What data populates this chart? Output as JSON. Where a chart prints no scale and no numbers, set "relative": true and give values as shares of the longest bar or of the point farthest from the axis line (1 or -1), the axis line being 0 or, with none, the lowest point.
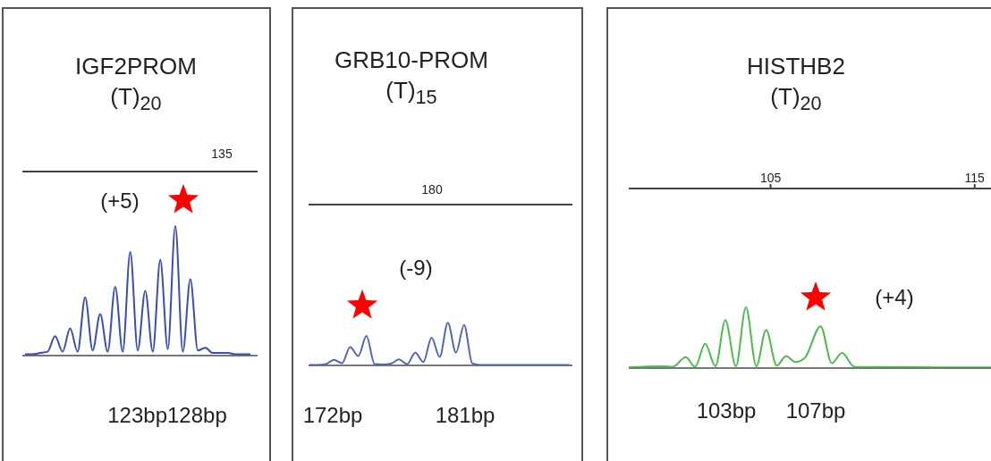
{
  "chart_data": [
    {
      "type": "line",
      "title": "IGF2PROM",
      "subtitle": "(T)$_{20}$",
      "relative": true,
      "categories": [
        null,
        null,
        null,
        null,
        null,
        null,
        null,
        null,
        null,
        null,
        null,
        null,
        null,
        null,
        null,
        null,
        null,
        null,
        null,
        null,
        null,
        null,
        null,
        null,
        null,
        null,
        null,
        null,
        null,
        null,
        null
      ],
      "series": [
        {
          "color": "#3a4db5",
          "values": [
            0.01,
            0.01,
            0.02,
            0.03,
            0.15,
            0.03,
            0.21,
            0.03,
            0.45,
            0.04,
            0.32,
            0.03,
            0.53,
            0.03,
            0.8,
            0.04,
            0.5,
            0.03,
            0.74,
            0.05,
            1.0,
            0.03,
            0.59,
            0.04,
            0.06,
            0.02,
            0.02,
            0.02,
            0.01,
            0.01,
            0.01
          ]
        }
      ],
      "annotations": [
        "135",
        "(+5)",
        "123bp128bp"
      ]
    },
    {
      "type": "line",
      "title": "GRB10-PROM",
      "subtitle": "(T)$_{15}$",
      "relative": true,
      "categories": [
        null,
        null,
        null,
        null,
        null,
        null,
        null,
        null,
        null,
        null,
        null,
        null,
        null,
        null,
        null,
        null,
        null,
        null,
        null,
        null,
        null,
        null,
        null,
        null,
        null,
        null,
        null,
        null,
        null,
        null,
        null,
        null,
        null
      ],
      "series": [
        {
          "color": "#5066b8",
          "values": [
            0.01,
            0.01,
            0.03,
            0.13,
            0.05,
            0.43,
            0.22,
            0.69,
            0.03,
            0.02,
            0.04,
            0.14,
            0.03,
            0.3,
            0.08,
            0.65,
            0.2,
            1.0,
            0.3,
            0.95,
            0.05,
            0.01,
            0.01,
            0.01,
            0.01,
            0.01,
            0.01,
            0.01,
            0.01,
            0.01,
            0.01,
            0.01,
            0.01
          ]
        }
      ],
      "annotations": [
        "180",
        "(-9)",
        "172bp",
        "181bp"
      ]
    },
    {
      "type": "line",
      "title": "HISTHB2",
      "subtitle": "(T)$_{20}$",
      "relative": true,
      "xlim": [
        98.05,
        115.8
      ],
      "xticks": [
        105,
        115
      ],
      "x": [
        98.05,
        99.67,
        100.2,
        100.84,
        101.3,
        101.79,
        102.3,
        102.78,
        103.3,
        103.79,
        104.3,
        104.78,
        105.3,
        105.76,
        106.2,
        106.68,
        107.45,
        108.0,
        108.5,
        109.1,
        115.8
      ],
      "series": [
        {
          "color": "#4dbb4d",
          "values": [
            0.01,
            0.03,
            0.02,
            0.18,
            0.02,
            0.4,
            0.03,
            0.79,
            0.03,
            1.0,
            0.03,
            0.63,
            0.04,
            0.2,
            0.1,
            0.17,
            0.69,
            0.08,
            0.25,
            0.02,
            0.01
          ]
        }
      ],
      "annotations": [
        "(+4)",
        "103bp",
        "107bp"
      ]
    }
  ]
}
